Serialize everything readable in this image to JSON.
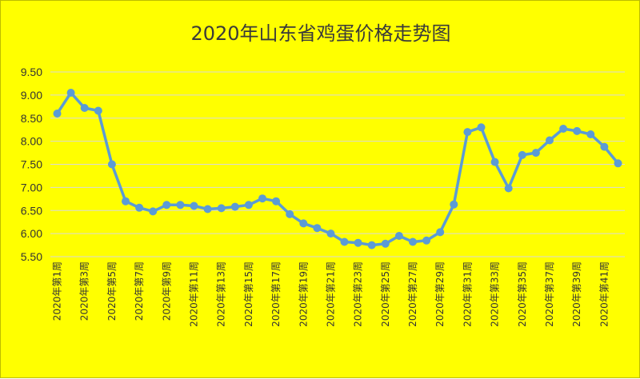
{
  "chart_data": {
    "type": "line",
    "title": "2020年山东省鸡蛋价格走势图",
    "xlabel": "",
    "ylabel": "",
    "ylim": [
      5.5,
      9.5
    ],
    "yticks": [
      "9.50",
      "9.00",
      "8.50",
      "8.00",
      "7.50",
      "7.00",
      "6.50",
      "6.00",
      "5.50"
    ],
    "grid": true,
    "legend": "none",
    "categories": [
      "2020年第1周",
      "2020年第2周",
      "2020年第3周",
      "2020年第4周",
      "2020年第5周",
      "2020年第6周",
      "2020年第7周",
      "2020年第8周",
      "2020年第9周",
      "2020年第10周",
      "2020年第11周",
      "2020年第12周",
      "2020年第13周",
      "2020年第14周",
      "2020年第15周",
      "2020年第16周",
      "2020年第17周",
      "2020年第18周",
      "2020年第19周",
      "2020年第20周",
      "2020年第21周",
      "2020年第22周",
      "2020年第23周",
      "2020年第24周",
      "2020年第25周",
      "2020年第26周",
      "2020年第27周",
      "2020年第28周",
      "2020年第29周",
      "2020年第30周",
      "2020年第31周",
      "2020年第32周",
      "2020年第33周",
      "2020年第34周",
      "2020年第35周",
      "2020年第36周",
      "2020年第37周",
      "2020年第38周",
      "2020年第39周",
      "2020年第40周",
      "2020年第41周",
      "2020年第42周"
    ],
    "tick_labels": [
      "2020年第1周",
      "2020年第3周",
      "2020年第5周",
      "2020年第7周",
      "2020年第9周",
      "2020年第11周",
      "2020年第13周",
      "2020年第15周",
      "2020年第17周",
      "2020年第19周",
      "2020年第21周",
      "2020年第23周",
      "2020年第25周",
      "2020年第27周",
      "2020年第29周",
      "2020年第31周",
      "2020年第33周",
      "2020年第35周",
      "2020年第37周",
      "2020年第39周",
      "2020年第41周"
    ],
    "series": [
      {
        "values": [
          8.6,
          9.05,
          8.72,
          8.66,
          7.5,
          6.7,
          6.56,
          6.48,
          6.62,
          6.62,
          6.6,
          6.53,
          6.55,
          6.58,
          6.62,
          6.76,
          6.7,
          6.42,
          6.22,
          6.12,
          6.0,
          5.82,
          5.8,
          5.75,
          5.78,
          5.95,
          5.82,
          5.85,
          6.03,
          6.63,
          8.2,
          8.3,
          7.55,
          6.98,
          7.7,
          7.75,
          8.02,
          8.27,
          8.22,
          8.15,
          7.88,
          7.52
        ],
        "color": "#5b9bd5"
      }
    ]
  },
  "colors": {
    "background": "#ffff00",
    "line": "#5b9bd5",
    "grid": "#d9d9d9",
    "text": "#333333"
  }
}
